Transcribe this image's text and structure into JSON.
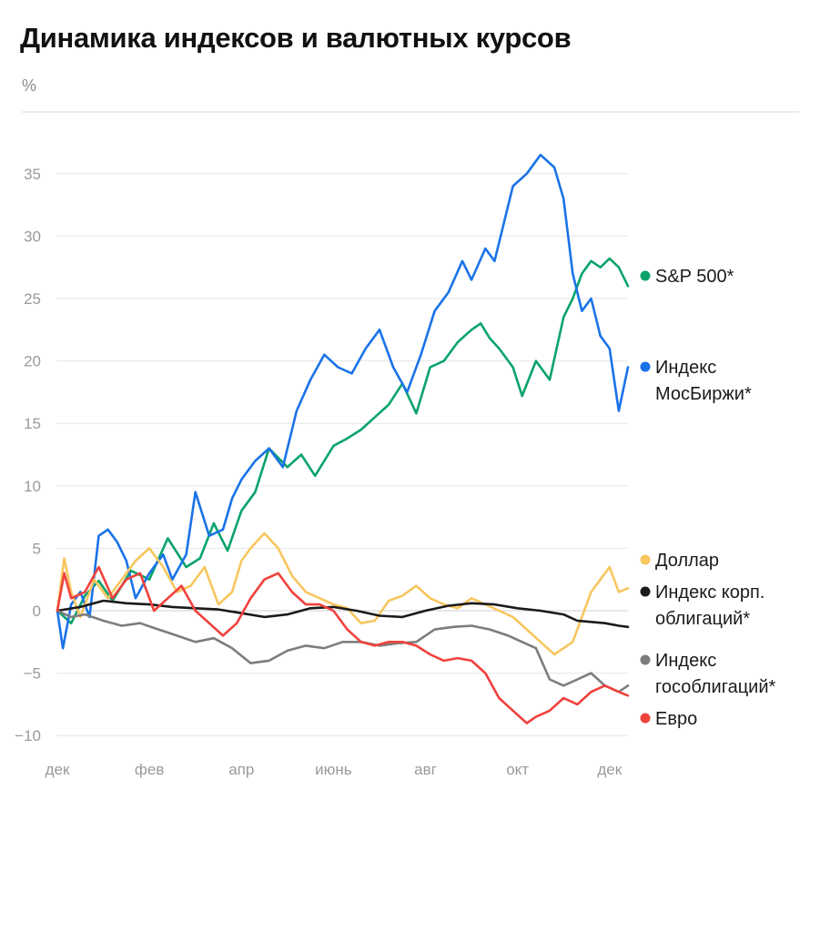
{
  "title": "Динамика индексов и валютных курсов",
  "unit": "%",
  "chart_data": {
    "type": "line",
    "title": "Динамика индексов и валютных курсов",
    "ylabel": "%",
    "xlabel": "",
    "ylim": [
      -11,
      38
    ],
    "yticks": [
      35,
      30,
      25,
      20,
      15,
      10,
      5,
      0,
      -5,
      -10
    ],
    "ytick_labels": [
      "35",
      "30",
      "25",
      "20",
      "15",
      "10",
      "5",
      "0",
      "−5",
      "−10"
    ],
    "x_range": [
      0,
      12.4
    ],
    "x_ticks": [
      {
        "x": 0,
        "label": "дек"
      },
      {
        "x": 2,
        "label": "фев"
      },
      {
        "x": 4,
        "label": "апр"
      },
      {
        "x": 6,
        "label": "июнь"
      },
      {
        "x": 8,
        "label": "авг"
      },
      {
        "x": 10,
        "label": "окт"
      },
      {
        "x": 12,
        "label": "дек"
      }
    ],
    "series": [
      {
        "name": "S&P 500*",
        "legend": [
          "S&P 500*"
        ],
        "color": "#0aa36a",
        "x": [
          0,
          0.3,
          0.6,
          0.9,
          1.2,
          1.6,
          2.0,
          2.4,
          2.8,
          3.1,
          3.4,
          3.7,
          4.0,
          4.3,
          4.6,
          5.0,
          5.3,
          5.6,
          6.0,
          6.3,
          6.6,
          6.9,
          7.2,
          7.5,
          7.8,
          8.1,
          8.4,
          8.7,
          9.0,
          9.2,
          9.4,
          9.6,
          9.9,
          10.1,
          10.4,
          10.7,
          11.0,
          11.2,
          11.4,
          11.6,
          11.8,
          12.0,
          12.2,
          12.4
        ],
        "values": [
          0,
          -1.0,
          1.2,
          2.4,
          0.8,
          3.2,
          2.5,
          5.8,
          3.5,
          4.2,
          7.0,
          4.8,
          8.0,
          9.5,
          13.0,
          11.5,
          12.5,
          10.8,
          13.2,
          13.8,
          14.5,
          15.5,
          16.5,
          18.2,
          15.8,
          19.5,
          20.0,
          21.5,
          22.5,
          23.0,
          21.8,
          21.0,
          19.5,
          17.2,
          20.0,
          18.5,
          23.5,
          25.0,
          27.0,
          28.0,
          27.5,
          28.2,
          27.5,
          26.0
        ]
      },
      {
        "name": "Индекс МосБиржи*",
        "legend": [
          "Индекс",
          "МосБиржи*"
        ],
        "color": "#1a73e8",
        "x": [
          0,
          0.12,
          0.3,
          0.5,
          0.7,
          0.9,
          1.1,
          1.3,
          1.5,
          1.7,
          2.0,
          2.3,
          2.5,
          2.8,
          3.0,
          3.3,
          3.6,
          3.8,
          4.0,
          4.3,
          4.6,
          4.9,
          5.2,
          5.5,
          5.8,
          6.1,
          6.4,
          6.7,
          7.0,
          7.3,
          7.6,
          7.9,
          8.2,
          8.5,
          8.8,
          9.0,
          9.3,
          9.5,
          9.7,
          9.9,
          10.2,
          10.5,
          10.8,
          11.0,
          11.2,
          11.4,
          11.6,
          11.8,
          12.0,
          12.2,
          12.4
        ],
        "values": [
          0,
          -3.0,
          0.5,
          1.5,
          -0.5,
          6.0,
          6.5,
          5.5,
          4.0,
          1.0,
          3.0,
          4.5,
          2.5,
          4.5,
          9.5,
          6.0,
          6.5,
          9.0,
          10.5,
          12.0,
          13.0,
          11.5,
          16.0,
          18.5,
          20.5,
          19.5,
          19.0,
          21.0,
          22.5,
          19.5,
          17.5,
          20.5,
          24.0,
          25.5,
          28.0,
          26.5,
          29.0,
          28.0,
          31.0,
          34.0,
          35.0,
          36.5,
          35.5,
          33.0,
          27.0,
          24.0,
          25.0,
          22.0,
          21.0,
          16.0,
          19.5
        ]
      },
      {
        "name": "Доллар",
        "legend": [
          "Доллар"
        ],
        "color": "#f7c65e",
        "x": [
          0,
          0.15,
          0.3,
          0.5,
          0.8,
          1.1,
          1.4,
          1.7,
          2.0,
          2.3,
          2.6,
          2.9,
          3.2,
          3.5,
          3.8,
          4.0,
          4.2,
          4.5,
          4.8,
          5.1,
          5.4,
          5.7,
          6.0,
          6.3,
          6.6,
          6.9,
          7.2,
          7.5,
          7.8,
          8.1,
          8.4,
          8.7,
          9.0,
          9.3,
          9.6,
          9.9,
          10.2,
          10.5,
          10.8,
          11.0,
          11.2,
          11.4,
          11.6,
          11.8,
          12.0,
          12.2,
          12.4
        ],
        "values": [
          0,
          4.2,
          1.5,
          -0.5,
          2.5,
          1.0,
          2.5,
          4.0,
          5.0,
          3.5,
          1.5,
          2.0,
          3.5,
          0.5,
          1.5,
          4.0,
          5.0,
          6.2,
          5.0,
          2.8,
          1.5,
          1.0,
          0.5,
          0.2,
          -1.0,
          -0.8,
          0.8,
          1.2,
          2.0,
          1.0,
          0.5,
          0.2,
          1.0,
          0.5,
          0.0,
          -0.5,
          -1.5,
          -2.5,
          -3.5,
          -3.0,
          -2.5,
          -0.5,
          1.5,
          2.5,
          3.5,
          1.5,
          1.8
        ]
      },
      {
        "name": "Индекс корп. облигаций*",
        "legend": [
          "Индекс корп.",
          "облигаций*"
        ],
        "color": "#1a1a1a",
        "x": [
          0,
          0.5,
          1.0,
          1.5,
          2.0,
          2.5,
          3.0,
          3.5,
          4.0,
          4.5,
          5.0,
          5.5,
          6.0,
          6.5,
          7.0,
          7.5,
          8.0,
          8.5,
          9.0,
          9.5,
          10.0,
          10.5,
          11.0,
          11.3,
          11.6,
          11.9,
          12.2,
          12.4
        ],
        "values": [
          0,
          0.3,
          0.8,
          0.6,
          0.5,
          0.3,
          0.2,
          0.1,
          -0.2,
          -0.5,
          -0.3,
          0.2,
          0.3,
          0.0,
          -0.4,
          -0.5,
          0.0,
          0.4,
          0.6,
          0.5,
          0.2,
          0.0,
          -0.3,
          -0.8,
          -0.9,
          -1.0,
          -1.2,
          -1.3
        ]
      },
      {
        "name": "Индекс гособлигаций*",
        "legend": [
          "Индекс",
          "гособлигаций*"
        ],
        "color": "#7d7d7d",
        "x": [
          0,
          0.3,
          0.6,
          1.0,
          1.4,
          1.8,
          2.2,
          2.6,
          3.0,
          3.4,
          3.8,
          4.2,
          4.6,
          5.0,
          5.4,
          5.8,
          6.2,
          6.6,
          7.0,
          7.4,
          7.8,
          8.2,
          8.6,
          9.0,
          9.4,
          9.8,
          10.1,
          10.4,
          10.7,
          11.0,
          11.3,
          11.6,
          11.9,
          12.2,
          12.4
        ],
        "values": [
          0,
          -0.5,
          -0.3,
          -0.8,
          -1.2,
          -1.0,
          -1.5,
          -2.0,
          -2.5,
          -2.2,
          -3.0,
          -4.2,
          -4.0,
          -3.2,
          -2.8,
          -3.0,
          -2.5,
          -2.5,
          -2.8,
          -2.6,
          -2.5,
          -1.5,
          -1.3,
          -1.2,
          -1.5,
          -2.0,
          -2.5,
          -3.0,
          -5.5,
          -6.0,
          -5.5,
          -5.0,
          -6.0,
          -6.5,
          -6.0
        ]
      },
      {
        "name": "Евро",
        "legend": [
          "Евро"
        ],
        "color": "#f0413d",
        "x": [
          0,
          0.15,
          0.3,
          0.6,
          0.9,
          1.2,
          1.5,
          1.8,
          2.1,
          2.4,
          2.7,
          3.0,
          3.3,
          3.6,
          3.9,
          4.2,
          4.5,
          4.8,
          5.1,
          5.4,
          5.7,
          6.0,
          6.3,
          6.6,
          6.9,
          7.2,
          7.5,
          7.8,
          8.1,
          8.4,
          8.7,
          9.0,
          9.3,
          9.6,
          9.9,
          10.2,
          10.4,
          10.7,
          11.0,
          11.3,
          11.6,
          11.9,
          12.2,
          12.4
        ],
        "values": [
          0,
          3.0,
          1.0,
          1.5,
          3.5,
          1.0,
          2.5,
          3.0,
          0.0,
          1.0,
          2.0,
          0.0,
          -1.0,
          -2.0,
          -1.0,
          1.0,
          2.5,
          3.0,
          1.5,
          0.5,
          0.5,
          0.0,
          -1.5,
          -2.5,
          -2.8,
          -2.5,
          -2.5,
          -2.8,
          -3.5,
          -4.0,
          -3.8,
          -4.0,
          -5.0,
          -7.0,
          -8.0,
          -9.0,
          -8.5,
          -8.0,
          -7.0,
          -7.5,
          -6.5,
          -6.0,
          -6.5,
          -6.8
        ]
      }
    ]
  }
}
